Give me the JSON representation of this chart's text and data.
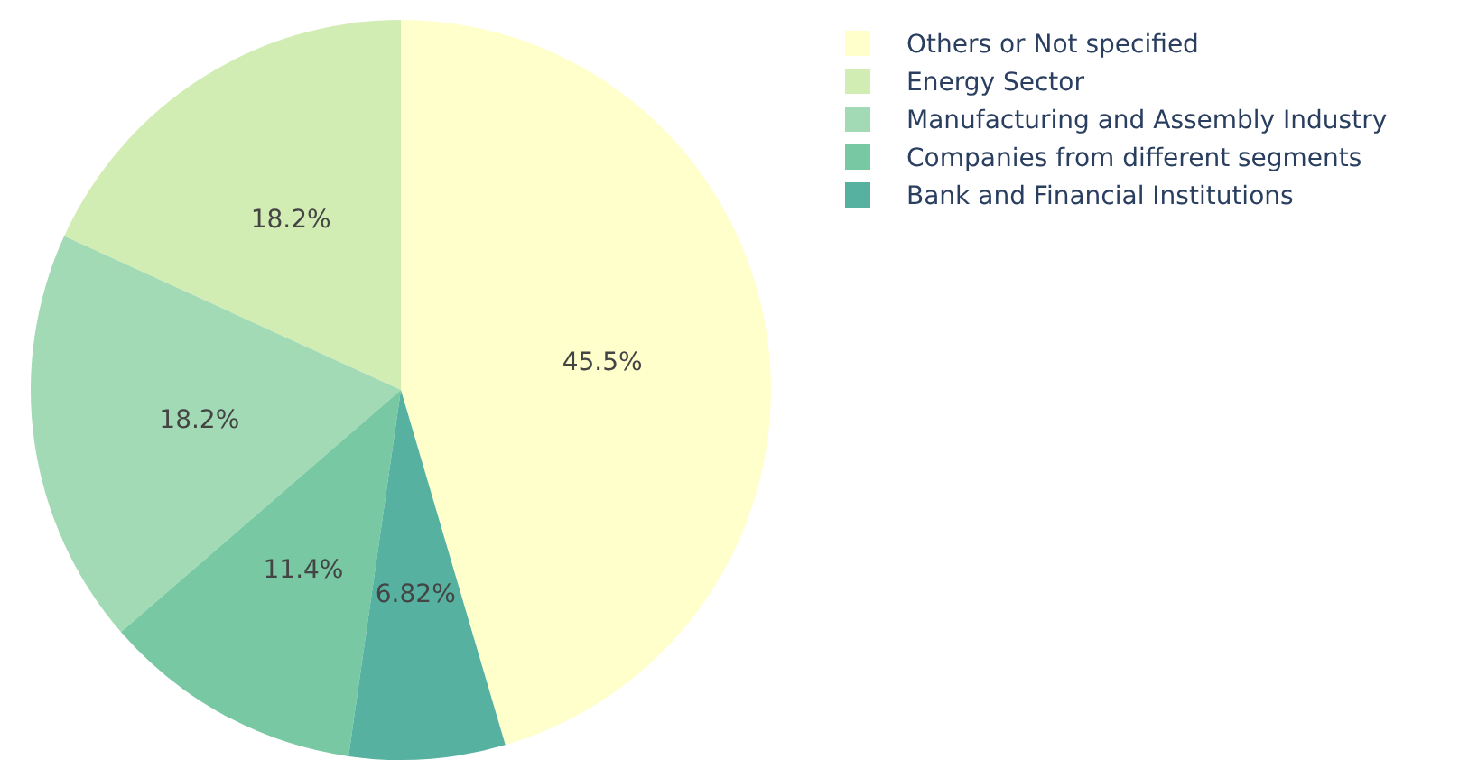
{
  "chart_data": {
    "type": "pie",
    "categories": [
      "Others or Not specified",
      "Energy Sector",
      "Manufacturing and Assembly Industry",
      "Companies from different segments",
      "Bank and Financial Institutions"
    ],
    "values": [
      45.5,
      18.2,
      18.2,
      11.4,
      6.82
    ],
    "value_labels": [
      "45.5%",
      "18.2%",
      "18.2%",
      "11.4%",
      "6.82%"
    ],
    "colors": [
      "#ffffcc",
      "#d2edb4",
      "#a1dab4",
      "#78c8a3",
      "#56b1a0"
    ],
    "legend": "top right"
  }
}
